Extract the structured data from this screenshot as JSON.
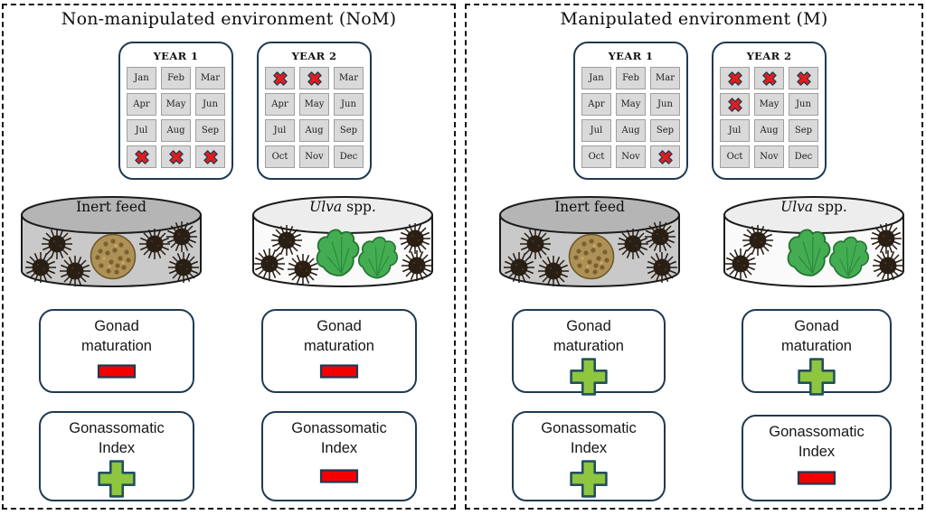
{
  "colors": {
    "panel_border": "#141414",
    "card_border": "#1f3a52",
    "calendar_cell_bg": "#d9d9d9",
    "cross_red": "#e01d1d",
    "plus_green": "#8ec63f",
    "minus_red": "#f50000",
    "inert_dish_gray": "#c9c9c9",
    "ulva_dish_white": "#fafafa",
    "ulva_green": "#44ad52",
    "pellet_brown": "#ad9257",
    "urchin_black": "#2a1f14"
  },
  "icons": {
    "crossed_out": "red-x-icon",
    "positive": "green-plus-icon",
    "negative": "red-minus-icon",
    "animal": "sea-urchin-icon",
    "inert_food": "feed-pellet-pile-icon",
    "algae": "ulva-leaf-icon"
  },
  "panels": [
    {
      "id": "NoM",
      "title": "Non-manipulated environment (NoM)",
      "calendars": [
        {
          "title": "YEAR 1",
          "months": [
            {
              "label": "Jan",
              "crossed": false
            },
            {
              "label": "Feb",
              "crossed": false
            },
            {
              "label": "Mar",
              "crossed": false
            },
            {
              "label": "Apr",
              "crossed": false
            },
            {
              "label": "May",
              "crossed": false
            },
            {
              "label": "Jun",
              "crossed": false
            },
            {
              "label": "Jul",
              "crossed": false
            },
            {
              "label": "Aug",
              "crossed": false
            },
            {
              "label": "Sep",
              "crossed": false
            },
            {
              "label": "Oct",
              "crossed": true
            },
            {
              "label": "Nov",
              "crossed": true
            },
            {
              "label": "Dec",
              "crossed": true
            }
          ]
        },
        {
          "title": "YEAR 2",
          "months": [
            {
              "label": "Jan",
              "crossed": true
            },
            {
              "label": "Feb",
              "crossed": true
            },
            {
              "label": "Mar",
              "crossed": false
            },
            {
              "label": "Apr",
              "crossed": false
            },
            {
              "label": "May",
              "crossed": false
            },
            {
              "label": "Jun",
              "crossed": false
            },
            {
              "label": "Jul",
              "crossed": false
            },
            {
              "label": "Aug",
              "crossed": false
            },
            {
              "label": "Sep",
              "crossed": false
            },
            {
              "label": "Oct",
              "crossed": false
            },
            {
              "label": "Nov",
              "crossed": false
            },
            {
              "label": "Dec",
              "crossed": false
            }
          ]
        }
      ],
      "feeds": [
        {
          "label_italic": "",
          "label": "Inert feed",
          "type": "inert"
        },
        {
          "label_italic": "Ulva",
          "label": " spp.",
          "type": "ulva"
        }
      ],
      "outcomes": [
        {
          "feed": "Inert feed",
          "line1": "Gonad",
          "line2": "maturation",
          "sign": "minus"
        },
        {
          "feed": "Ulva spp.",
          "line1": "Gonad",
          "line2": "maturation",
          "sign": "minus"
        },
        {
          "feed": "Inert feed",
          "line1": "Gonassomatic",
          "line2": "Index",
          "sign": "plus"
        },
        {
          "feed": "Ulva spp.",
          "line1": "Gonassomatic",
          "line2": "Index",
          "sign": "minus"
        }
      ]
    },
    {
      "id": "M",
      "title": "Manipulated environment (M)",
      "calendars": [
        {
          "title": "YEAR 1",
          "months": [
            {
              "label": "Jan",
              "crossed": false
            },
            {
              "label": "Feb",
              "crossed": false
            },
            {
              "label": "Mar",
              "crossed": false
            },
            {
              "label": "Apr",
              "crossed": false
            },
            {
              "label": "May",
              "crossed": false
            },
            {
              "label": "Jun",
              "crossed": false
            },
            {
              "label": "Jul",
              "crossed": false
            },
            {
              "label": "Aug",
              "crossed": false
            },
            {
              "label": "Sep",
              "crossed": false
            },
            {
              "label": "Oct",
              "crossed": false
            },
            {
              "label": "Nov",
              "crossed": false
            },
            {
              "label": "Dec",
              "crossed": true
            }
          ]
        },
        {
          "title": "YEAR 2",
          "months": [
            {
              "label": "Jan",
              "crossed": true
            },
            {
              "label": "Feb",
              "crossed": true
            },
            {
              "label": "Mar",
              "crossed": true
            },
            {
              "label": "Apr",
              "crossed": true
            },
            {
              "label": "May",
              "crossed": false
            },
            {
              "label": "Jun",
              "crossed": false
            },
            {
              "label": "Jul",
              "crossed": false
            },
            {
              "label": "Aug",
              "crossed": false
            },
            {
              "label": "Sep",
              "crossed": false
            },
            {
              "label": "Oct",
              "crossed": false
            },
            {
              "label": "Nov",
              "crossed": false
            },
            {
              "label": "Dec",
              "crossed": false
            }
          ]
        }
      ],
      "feeds": [
        {
          "label_italic": "",
          "label": "Inert feed",
          "type": "inert"
        },
        {
          "label_italic": "Ulva",
          "label": " spp.",
          "type": "ulva"
        }
      ],
      "outcomes": [
        {
          "feed": "Inert feed",
          "line1": "Gonad",
          "line2": "maturation",
          "sign": "plus"
        },
        {
          "feed": "Ulva spp.",
          "line1": "Gonad",
          "line2": "maturation",
          "sign": "plus"
        },
        {
          "feed": "Inert feed",
          "line1": "Gonassomatic",
          "line2": "Index",
          "sign": "plus"
        },
        {
          "feed": "Ulva spp.",
          "line1": "Gonassomatic",
          "line2": "Index",
          "sign": "minus"
        }
      ]
    }
  ]
}
